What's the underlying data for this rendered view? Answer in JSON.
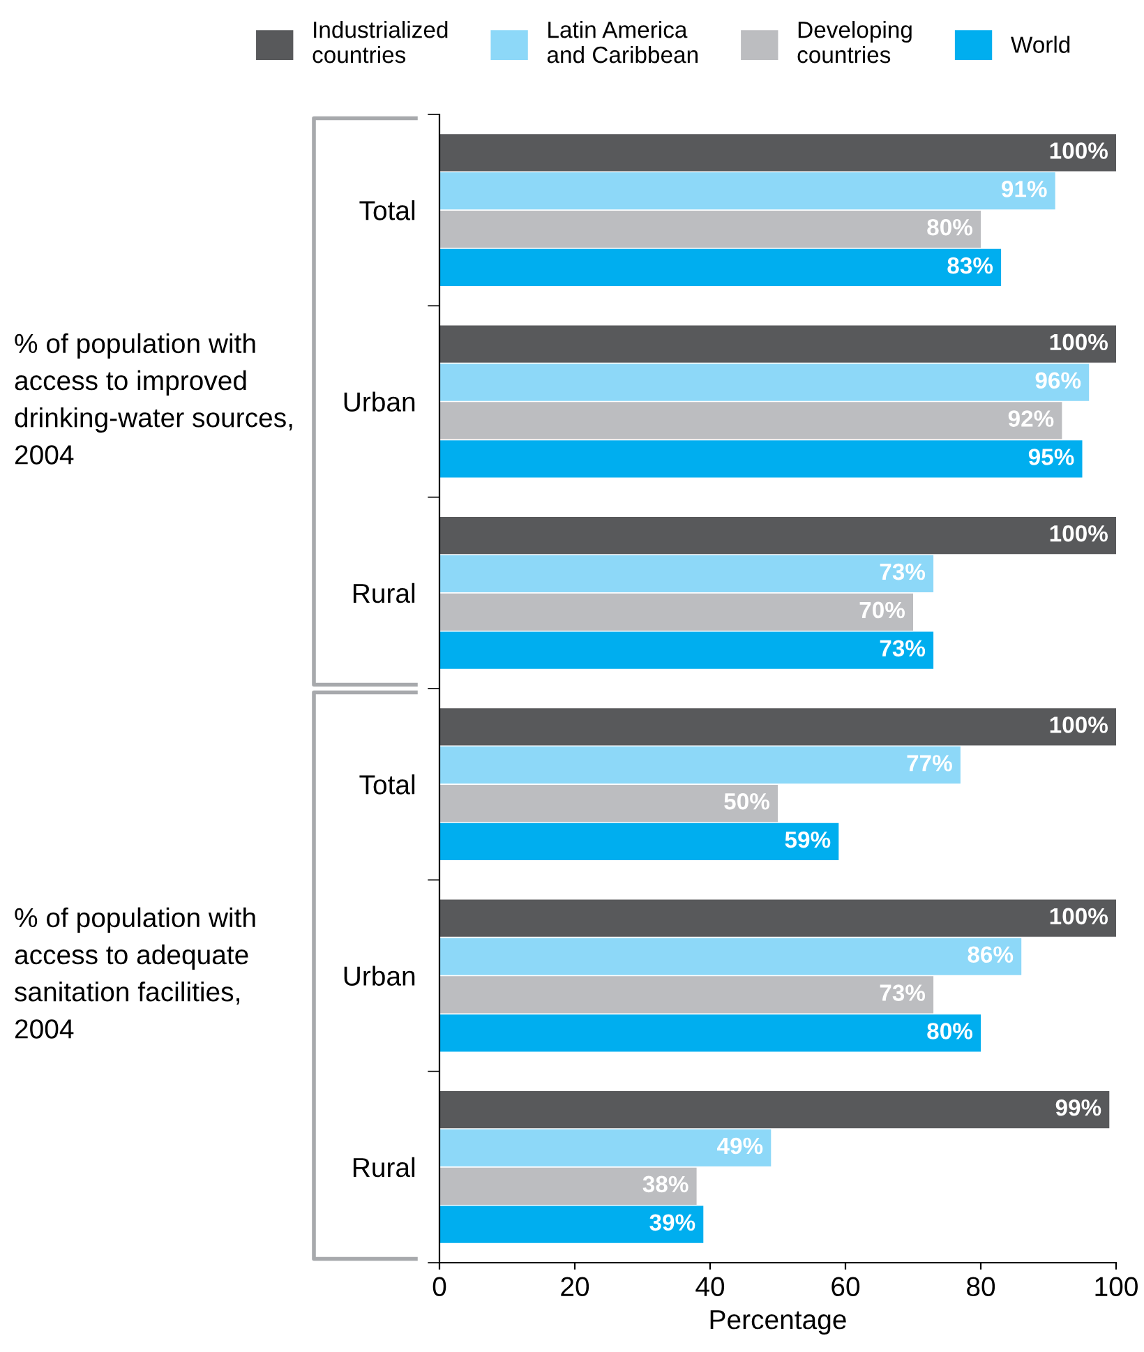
{
  "chart_data": {
    "type": "bar",
    "orientation": "horizontal",
    "xlabel": "Percentage",
    "categories": [
      "Total",
      "Urban",
      "Rural",
      "Total",
      "Urban",
      "Rural"
    ],
    "series": [
      {
        "name": "Industrialized countries",
        "color": "#58595b",
        "values": [
          100,
          100,
          100,
          100,
          100,
          99
        ],
        "value_labels": [
          "100%",
          "100%",
          "100%",
          "100%",
          "100%",
          "99%"
        ]
      },
      {
        "name": "Latin America and Caribbean",
        "color": "#8dd8f8",
        "values": [
          91,
          96,
          73,
          77,
          86,
          49
        ],
        "value_labels": [
          "91%",
          "96%",
          "73%",
          "77%",
          "86%",
          "49%"
        ]
      },
      {
        "name": "Developing countries",
        "color": "#bcbdc0",
        "values": [
          80,
          92,
          70,
          50,
          73,
          38
        ],
        "value_labels": [
          "80%",
          "92%",
          "70%",
          "50%",
          "73%",
          "38%"
        ]
      },
      {
        "name": "World",
        "color": "#00aeef",
        "values": [
          83,
          95,
          73,
          59,
          80,
          39
        ],
        "value_labels": [
          "83%",
          "95%",
          "73%",
          "59%",
          "80%",
          "39%"
        ]
      }
    ],
    "xlim": [
      0,
      100
    ],
    "xticks": [
      0,
      20,
      40,
      60,
      80,
      100
    ],
    "annotations": [
      "% of population with access to improved drinking-water sources, 2004",
      "% of population with access to adequate sanitation facilities, 2004"
    ],
    "legend": "top",
    "grid": false
  }
}
